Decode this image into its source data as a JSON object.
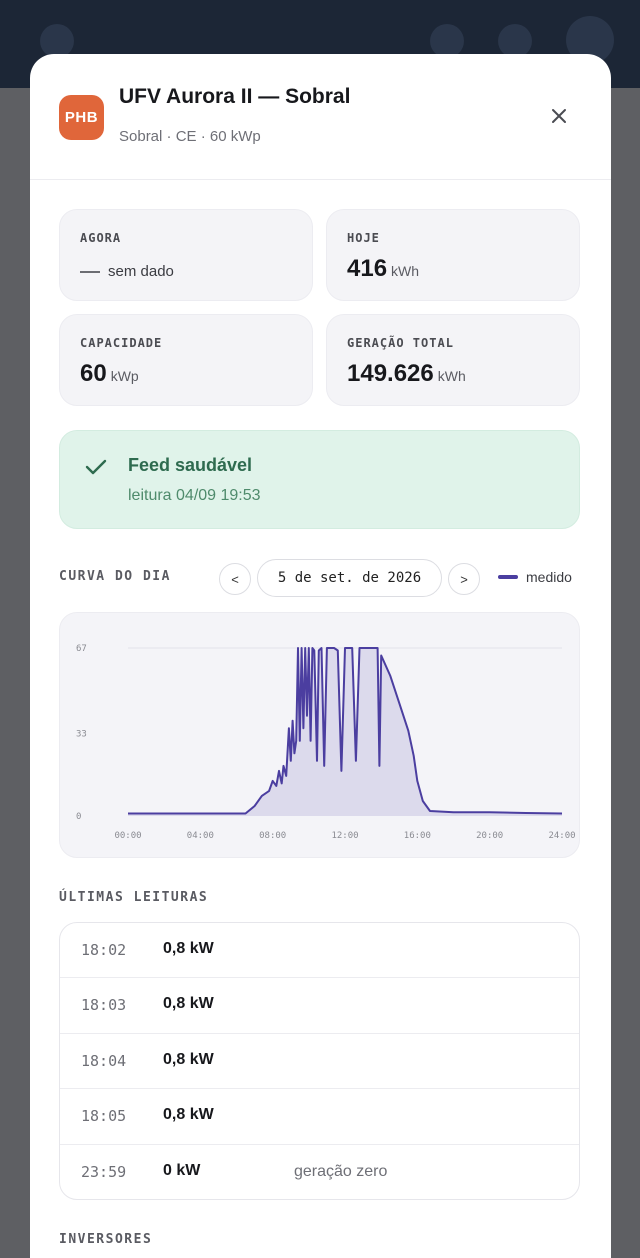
{
  "site": {
    "logo_text": "PHB",
    "title": "UFV Aurora II — Sobral",
    "subtitle": "Sobral · CE · 60 kWp"
  },
  "stats": {
    "now": {
      "label": "AGORA",
      "value": "sem dado"
    },
    "today": {
      "label": "HOJE",
      "value": "416",
      "unit": "kWh"
    },
    "capacity": {
      "label": "CAPACIDADE",
      "value": "60",
      "unit": "kWp"
    },
    "total": {
      "label": "GERAÇÃO TOTAL",
      "value": "149.626",
      "unit": "kWh"
    }
  },
  "feed": {
    "title": "Feed saudável",
    "subtitle": "leitura 04/09 19:53"
  },
  "curve": {
    "label": "CURVA DO DIA",
    "prev": "<",
    "next": ">",
    "date": "5 de set. de 2026",
    "legend": "medido"
  },
  "chart_data": {
    "type": "area",
    "series": [
      {
        "name": "medido",
        "color": "#4b3ea0"
      }
    ],
    "x_ticks": [
      "00:00",
      "04:00",
      "08:00",
      "12:00",
      "16:00",
      "20:00",
      "24:00"
    ],
    "y_ticks": [
      "0",
      "33",
      "67"
    ],
    "xlim": [
      0,
      24
    ],
    "ylim": [
      0,
      67
    ],
    "x": [
      0,
      2,
      4,
      6.5,
      7,
      7.4,
      7.8,
      8.0,
      8.2,
      8.35,
      8.5,
      8.6,
      8.75,
      8.9,
      9.0,
      9.1,
      9.2,
      9.3,
      9.4,
      9.5,
      9.6,
      9.7,
      9.8,
      9.9,
      10.0,
      10.1,
      10.2,
      10.3,
      10.45,
      10.55,
      10.7,
      10.85,
      11.0,
      11.4,
      11.6,
      11.8,
      12.0,
      12.2,
      12.4,
      12.6,
      12.8,
      13.0,
      13.2,
      13.5,
      13.7,
      13.8,
      13.9,
      14.0,
      14.5,
      15.0,
      15.5,
      15.8,
      16.0,
      16.3,
      16.7,
      18,
      20,
      22,
      24
    ],
    "y": [
      1,
      1,
      1,
      1,
      4,
      8,
      10,
      14,
      12,
      18,
      13,
      20,
      16,
      35,
      22,
      38,
      25,
      30,
      67,
      30,
      67,
      35,
      67,
      40,
      67,
      30,
      67,
      66,
      22,
      66,
      67,
      20,
      67,
      67,
      66,
      18,
      67,
      67,
      67,
      22,
      67,
      67,
      67,
      67,
      67,
      67,
      20,
      64,
      56,
      45,
      34,
      24,
      14,
      6,
      2,
      1.5,
      1.5,
      1.2,
      1
    ]
  },
  "readings": {
    "label": "ÚLTIMAS LEITURAS",
    "rows": [
      {
        "time": "18:02",
        "value": "0,8 kW",
        "note": ""
      },
      {
        "time": "18:03",
        "value": "0,8 kW",
        "note": ""
      },
      {
        "time": "18:04",
        "value": "0,8 kW",
        "note": ""
      },
      {
        "time": "18:05",
        "value": "0,8 kW",
        "note": ""
      },
      {
        "time": "23:59",
        "value": "0 kW",
        "note": "geração zero"
      }
    ]
  },
  "inverters": {
    "label": "INVERSORES"
  },
  "icons": {
    "close": "close-icon",
    "check": "check-icon"
  },
  "colors": {
    "accent": "#4b3ea0",
    "logo": "#e0663a",
    "success": "#2e6b4f"
  }
}
